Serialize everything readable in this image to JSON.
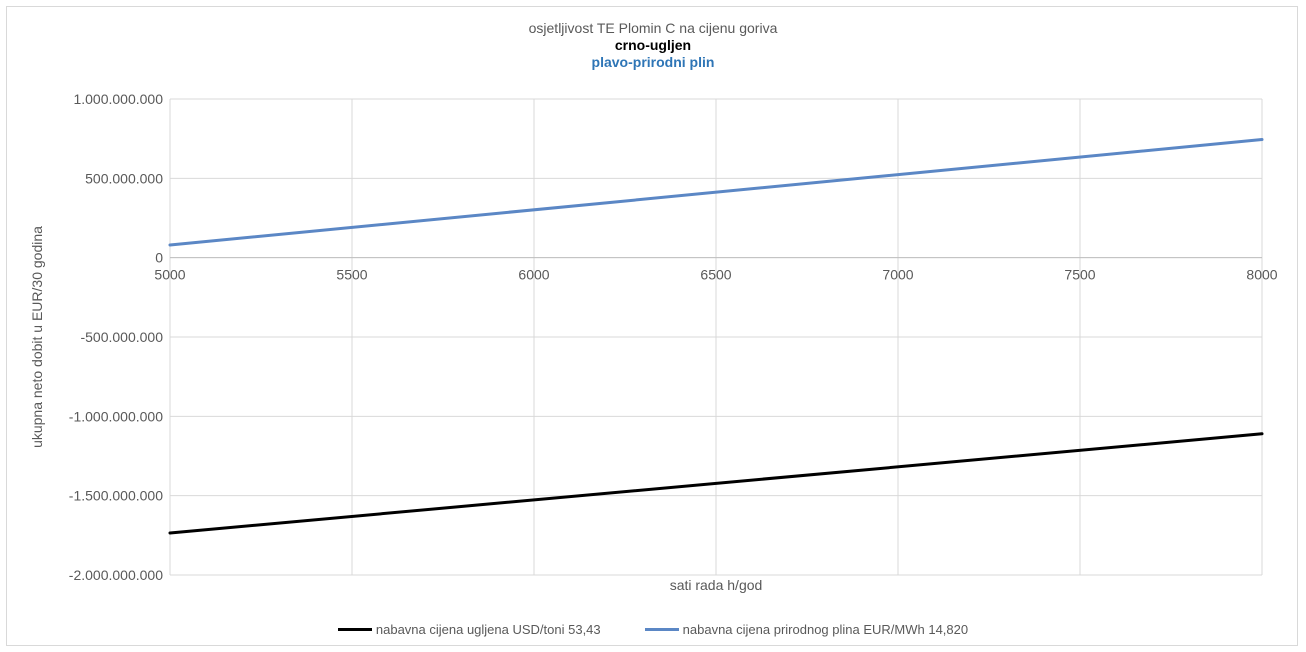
{
  "chart_data": {
    "type": "line",
    "title": "osjetljivost TE Plomin C na cijenu goriva",
    "subtitle_lines": [
      {
        "text": "crno-ugljen",
        "color": "#000000"
      },
      {
        "text": "plavo-prirodni plin",
        "color": "#2e75b6"
      }
    ],
    "xlabel": "sati rada h/god",
    "ylabel": "ukupna neto dobit u EUR/30 godina",
    "xlim": [
      5000,
      8000
    ],
    "ylim": [
      -2000000000,
      1000000000
    ],
    "x_ticks": [
      5000,
      5500,
      6000,
      6500,
      7000,
      7500,
      8000
    ],
    "x_tick_labels": [
      "5000",
      "5500",
      "6000",
      "6500",
      "7000",
      "7500",
      "8000"
    ],
    "y_ticks": [
      1000000000,
      500000000,
      0,
      -500000000,
      -1000000000,
      -1500000000,
      -2000000000
    ],
    "y_tick_labels": [
      "1.000.000.000",
      "500.000.000",
      "0",
      "-500.000.000",
      "-1.000.000.000",
      "-1.500.000.000",
      "-2.000.000.000"
    ],
    "grid": true,
    "legend_position": "bottom",
    "series": [
      {
        "name": "nabavna cijena ugljena USD/toni 53,43",
        "color": "#000000",
        "x": [
          5000,
          8000
        ],
        "y": [
          -1735000000,
          -1110000000
        ]
      },
      {
        "name": "nabavna cijena prirodnog plina EUR/MWh  14,820",
        "color": "#5b87c5",
        "x": [
          5000,
          8000
        ],
        "y": [
          80000000,
          745000000
        ]
      }
    ]
  }
}
